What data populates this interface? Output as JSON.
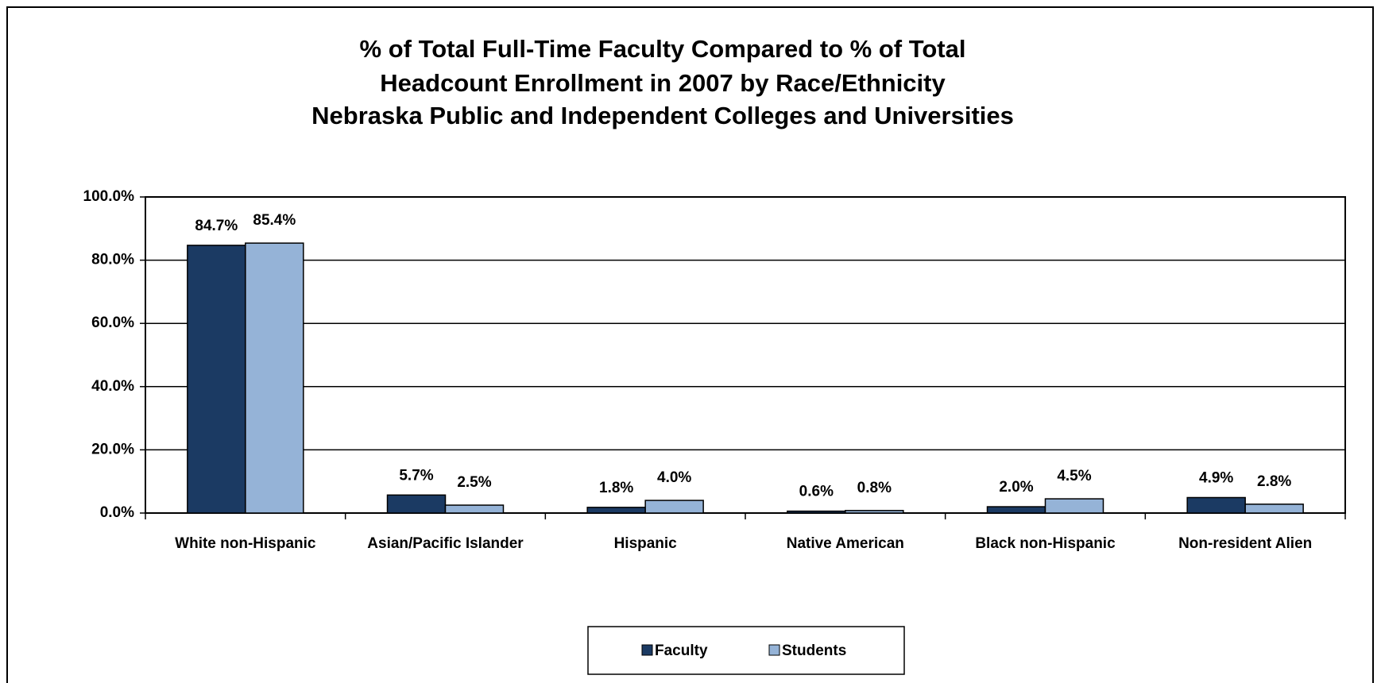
{
  "chart_data": {
    "type": "bar",
    "title": [
      "% of Total Full-Time Faculty Compared to % of Total",
      "Headcount Enrollment in 2007 by Race/Ethnicity",
      "Nebraska Public and Independent Colleges and Universities"
    ],
    "categories": [
      "White non-Hispanic",
      "Asian/Pacific Islander",
      "Hispanic",
      "Native American",
      "Black non-Hispanic",
      "Non-resident Alien"
    ],
    "series": [
      {
        "name": "Faculty",
        "color": "#1b3a63",
        "values": [
          84.7,
          5.7,
          1.8,
          0.6,
          2.0,
          4.9
        ],
        "value_labels": [
          "84.7%",
          "5.7%",
          "1.8%",
          "0.6%",
          "2.0%",
          "4.9%"
        ]
      },
      {
        "name": "Students",
        "color": "#95b3d7",
        "values": [
          85.4,
          2.5,
          4.0,
          0.8,
          4.5,
          2.8
        ],
        "value_labels": [
          "85.4%",
          "2.5%",
          "4.0%",
          "0.8%",
          "4.5%",
          "2.8%"
        ]
      }
    ],
    "ylim": [
      0,
      100
    ],
    "yticks": [
      {
        "value": 0,
        "label": "0.0%"
      },
      {
        "value": 20,
        "label": "20.0%"
      },
      {
        "value": 40,
        "label": "40.0%"
      },
      {
        "value": 60,
        "label": "60.0%"
      },
      {
        "value": 80,
        "label": "80.0%"
      },
      {
        "value": 100,
        "label": "100.0%"
      }
    ],
    "grid": true,
    "legend": "bottom"
  }
}
